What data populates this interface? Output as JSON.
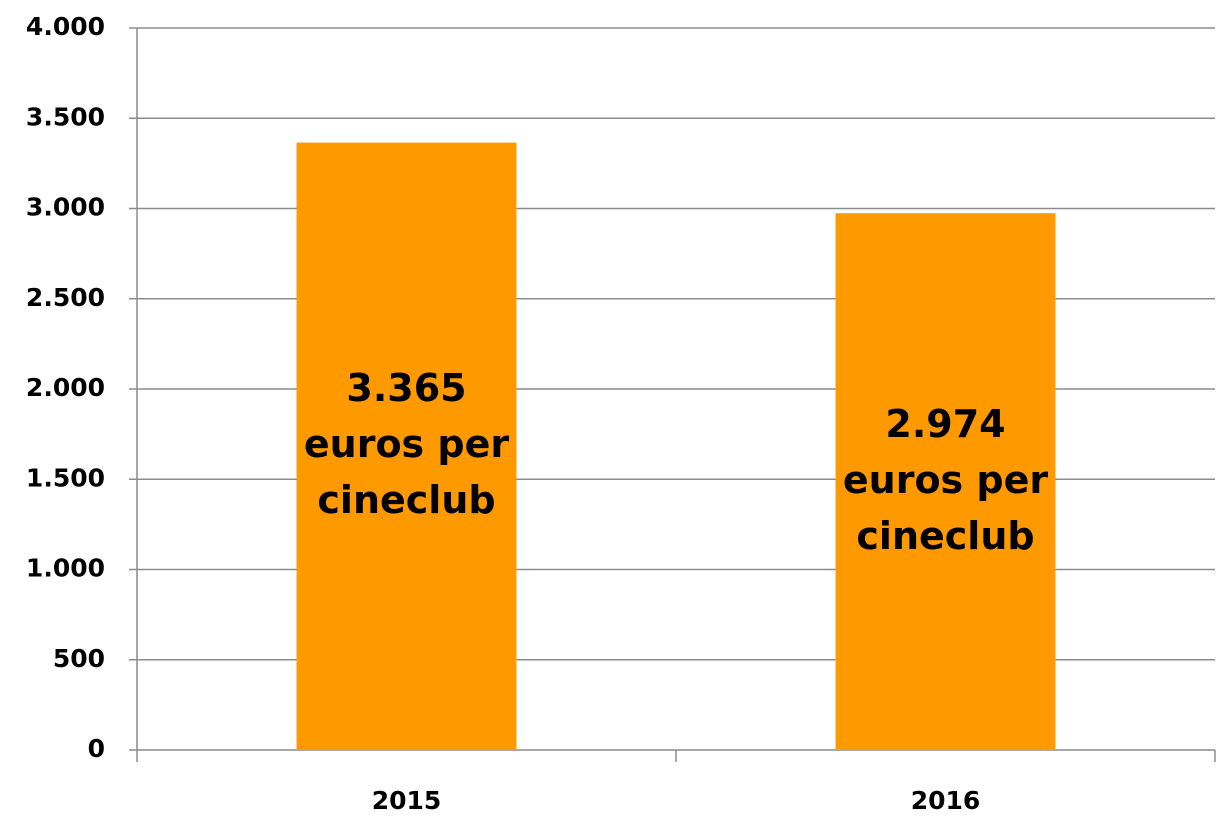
{
  "chart_data": {
    "type": "bar",
    "categories": [
      "2015",
      "2016"
    ],
    "values": [
      3365,
      2974
    ],
    "value_labels": [
      "3.365\neuros per\ncineclub",
      "2.974\neuros per\ncineclub"
    ],
    "color": "#ff9900",
    "ylim": [
      0,
      4000
    ],
    "yticks": [
      0,
      500,
      {
        "value": 1000,
        "label": "1.000"
      },
      {
        "value": 1500,
        "label": "1.500"
      },
      {
        "value": 2000,
        "label": "2.000"
      },
      {
        "value": 2500,
        "label": "2.500"
      },
      {
        "value": 3000,
        "label": "3.000"
      },
      {
        "value": 3500,
        "label": "3.500"
      },
      {
        "value": 4000,
        "label": "4.000"
      }
    ],
    "grid": true
  }
}
